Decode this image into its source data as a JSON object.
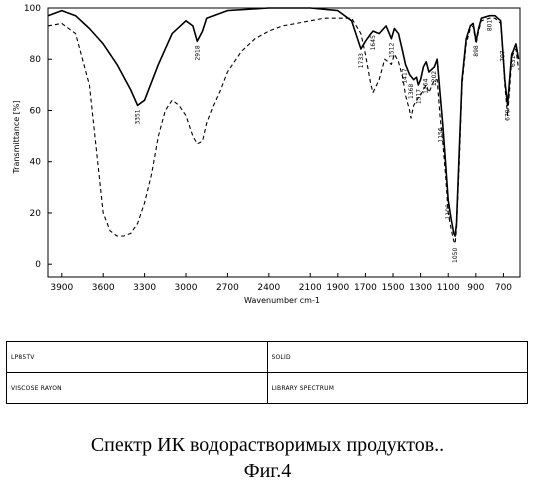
{
  "chart_data": {
    "type": "line",
    "title": "",
    "xlabel": "Wavenumber cm-1",
    "ylabel": "Transmittance [%]",
    "xlim": [
      4000,
      580
    ],
    "ylim": [
      -5,
      100
    ],
    "x_ticks": [
      "3900",
      "3600",
      "3300",
      "3000",
      "2700",
      "2400",
      "2100",
      "1900",
      "1700",
      "1500",
      "1300",
      "1100",
      "900",
      "700"
    ],
    "y_ticks": [
      "100",
      "80",
      "60",
      "40",
      "20",
      "0"
    ],
    "series": [
      {
        "style": "solid",
        "points": [
          [
            4000,
            97
          ],
          [
            3900,
            99
          ],
          [
            3800,
            97
          ],
          [
            3700,
            92
          ],
          [
            3600,
            86
          ],
          [
            3500,
            78
          ],
          [
            3400,
            68
          ],
          [
            3351,
            62
          ],
          [
            3300,
            64
          ],
          [
            3200,
            78
          ],
          [
            3100,
            90
          ],
          [
            3000,
            95
          ],
          [
            2950,
            93
          ],
          [
            2918,
            87
          ],
          [
            2880,
            91
          ],
          [
            2850,
            96
          ],
          [
            2700,
            99
          ],
          [
            2400,
            100
          ],
          [
            2100,
            100
          ],
          [
            1900,
            99
          ],
          [
            1800,
            95
          ],
          [
            1733,
            84
          ],
          [
            1700,
            87
          ],
          [
            1660,
            90
          ],
          [
            1645,
            91
          ],
          [
            1600,
            90
          ],
          [
            1550,
            93
          ],
          [
            1512,
            88
          ],
          [
            1490,
            92
          ],
          [
            1460,
            90
          ],
          [
            1430,
            83
          ],
          [
            1410,
            78
          ],
          [
            1380,
            74
          ],
          [
            1350,
            72
          ],
          [
            1330,
            73
          ],
          [
            1317,
            70
          ],
          [
            1300,
            72
          ],
          [
            1280,
            77
          ],
          [
            1260,
            79
          ],
          [
            1240,
            75
          ],
          [
            1200,
            77
          ],
          [
            1180,
            80
          ],
          [
            1160,
            67
          ],
          [
            1140,
            55
          ],
          [
            1120,
            40
          ],
          [
            1100,
            25
          ],
          [
            1080,
            18
          ],
          [
            1060,
            12
          ],
          [
            1050,
            11
          ],
          [
            1040,
            16
          ],
          [
            1020,
            45
          ],
          [
            1000,
            72
          ],
          [
            970,
            88
          ],
          [
            940,
            93
          ],
          [
            920,
            94
          ],
          [
            898,
            87
          ],
          [
            880,
            92
          ],
          [
            860,
            96
          ],
          [
            800,
            97
          ],
          [
            761,
            97
          ],
          [
            720,
            95
          ],
          [
            707,
            85
          ],
          [
            690,
            72
          ],
          [
            670,
            62
          ],
          [
            655,
            72
          ],
          [
            640,
            82
          ],
          [
            631,
            83
          ],
          [
            610,
            86
          ],
          [
            590,
            80
          ]
        ]
      },
      {
        "style": "dashed",
        "points": [
          [
            4000,
            93
          ],
          [
            3900,
            94
          ],
          [
            3800,
            90
          ],
          [
            3700,
            70
          ],
          [
            3650,
            45
          ],
          [
            3600,
            20
          ],
          [
            3550,
            13
          ],
          [
            3500,
            11
          ],
          [
            3450,
            11
          ],
          [
            3400,
            12
          ],
          [
            3350,
            16
          ],
          [
            3300,
            24
          ],
          [
            3250,
            35
          ],
          [
            3200,
            50
          ],
          [
            3150,
            60
          ],
          [
            3100,
            64
          ],
          [
            3050,
            62
          ],
          [
            3000,
            58
          ],
          [
            2950,
            50
          ],
          [
            2918,
            47
          ],
          [
            2880,
            48
          ],
          [
            2850,
            55
          ],
          [
            2800,
            62
          ],
          [
            2750,
            68
          ],
          [
            2700,
            75
          ],
          [
            2600,
            83
          ],
          [
            2500,
            88
          ],
          [
            2400,
            91
          ],
          [
            2300,
            93
          ],
          [
            2200,
            94
          ],
          [
            2100,
            95
          ],
          [
            2000,
            96
          ],
          [
            1900,
            96
          ],
          [
            1800,
            96
          ],
          [
            1733,
            90
          ],
          [
            1700,
            82
          ],
          [
            1660,
            70
          ],
          [
            1645,
            67
          ],
          [
            1600,
            72
          ],
          [
            1560,
            80
          ],
          [
            1512,
            78
          ],
          [
            1490,
            82
          ],
          [
            1460,
            79
          ],
          [
            1430,
            73
          ],
          [
            1410,
            66
          ],
          [
            1380,
            60
          ],
          [
            1370,
            57
          ],
          [
            1350,
            62
          ],
          [
            1317,
            65
          ],
          [
            1300,
            66
          ],
          [
            1280,
            68
          ],
          [
            1260,
            70
          ],
          [
            1240,
            67
          ],
          [
            1200,
            72
          ],
          [
            1180,
            72
          ],
          [
            1160,
            58
          ],
          [
            1140,
            48
          ],
          [
            1120,
            35
          ],
          [
            1100,
            20
          ],
          [
            1080,
            14
          ],
          [
            1060,
            9
          ],
          [
            1050,
            8
          ],
          [
            1040,
            14
          ],
          [
            1020,
            40
          ],
          [
            1000,
            70
          ],
          [
            970,
            86
          ],
          [
            940,
            92
          ],
          [
            920,
            93
          ],
          [
            898,
            86
          ],
          [
            880,
            91
          ],
          [
            860,
            95
          ],
          [
            800,
            96
          ],
          [
            761,
            96
          ],
          [
            720,
            94
          ],
          [
            707,
            84
          ],
          [
            690,
            70
          ],
          [
            670,
            58
          ],
          [
            655,
            68
          ],
          [
            640,
            80
          ],
          [
            631,
            82
          ],
          [
            610,
            84
          ],
          [
            590,
            76
          ]
        ]
      }
    ],
    "peak_labels": [
      {
        "x": 3351,
        "y": 62,
        "text": "3351"
      },
      {
        "x": 2918,
        "y": 87,
        "text": "2918"
      },
      {
        "x": 1733,
        "y": 84,
        "text": "1733"
      },
      {
        "x": 1645,
        "y": 91,
        "text": "1645"
      },
      {
        "x": 1512,
        "y": 88,
        "text": "1512"
      },
      {
        "x": 1417,
        "y": 78,
        "text": "1417"
      },
      {
        "x": 1368,
        "y": 72,
        "text": "1368"
      },
      {
        "x": 1317,
        "y": 70,
        "text": "1317"
      },
      {
        "x": 1264,
        "y": 74,
        "text": "1264"
      },
      {
        "x": 1202,
        "y": 77,
        "text": "1202"
      },
      {
        "x": 1156,
        "y": 55,
        "text": "1156"
      },
      {
        "x": 1100,
        "y": 25,
        "text": "1100"
      },
      {
        "x": 1050,
        "y": 8,
        "text": "1050"
      },
      {
        "x": 898,
        "y": 87,
        "text": "898"
      },
      {
        "x": 800,
        "y": 97,
        "text": "801"
      },
      {
        "x": 707,
        "y": 85,
        "text": "707"
      },
      {
        "x": 670,
        "y": 62,
        "text": "670"
      },
      {
        "x": 631,
        "y": 83,
        "text": "631"
      }
    ]
  },
  "info_table": {
    "rows": [
      [
        "LP85TV",
        "SOLID"
      ],
      [
        "VISCOSE RAYON",
        "LIBRARY SPECTRUM"
      ]
    ]
  },
  "caption": {
    "line1": "Спектр ИК водорастворимых продуктов..",
    "line2": "Фиг.4"
  }
}
